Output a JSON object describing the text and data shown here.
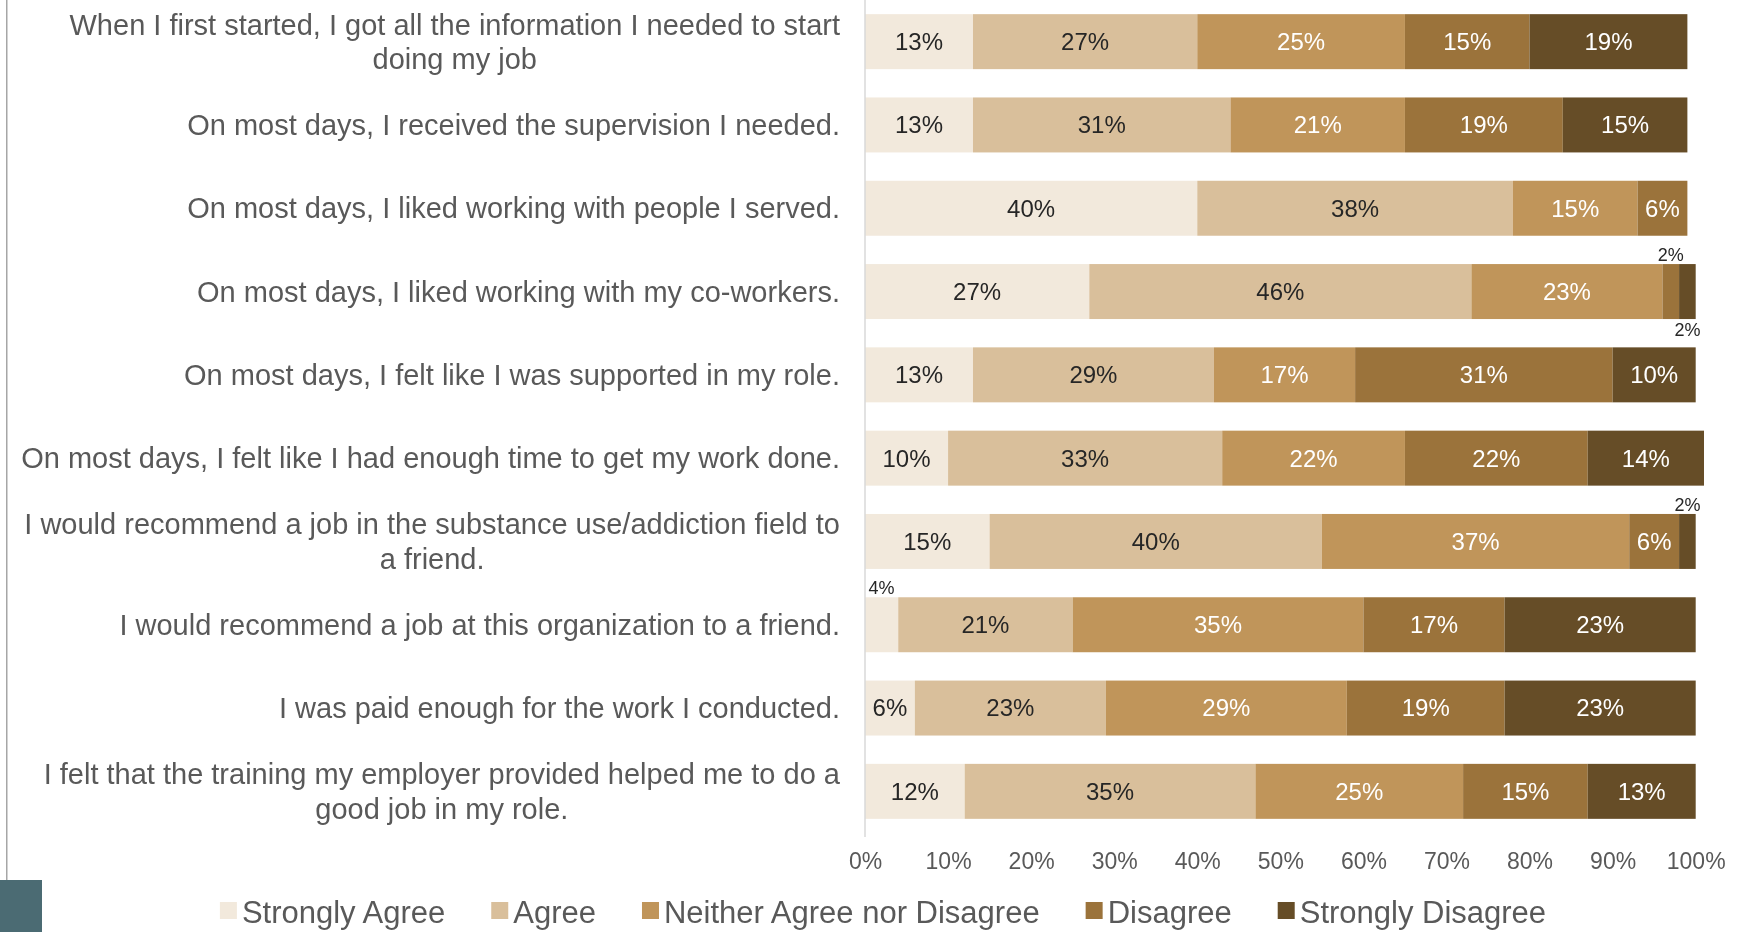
{
  "chart_data": {
    "type": "bar",
    "orientation": "horizontal",
    "stacked": true,
    "categories": [
      "When I first started, I got all the information I needed to start doing my job",
      "On most days, I received the supervision I needed.",
      "On most days, I liked working with people I served.",
      "On most days, I liked working with my co-workers.",
      "On most days, I felt like I was supported in my role.",
      "On most days, I felt like I had enough time to get my work done.",
      "I would recommend a job in the substance use/addiction field to a friend.",
      "I would recommend a job at this organization to a friend.",
      "I was paid enough for the work I conducted.",
      "I felt that the training my employer provided helped me to do a good job in my role."
    ],
    "series": [
      {
        "name": "Strongly Agree",
        "color": "#f2e9dc",
        "values": [
          13,
          13,
          40,
          27,
          13,
          10,
          15,
          4,
          6,
          12
        ],
        "value_labels": [
          "13%",
          "13%",
          "40%",
          "27%",
          "13%",
          "10%",
          "15%",
          "4%",
          "6%",
          "12%"
        ]
      },
      {
        "name": "Agree",
        "color": "#d9bf9b",
        "values": [
          27,
          31,
          38,
          46,
          29,
          33,
          40,
          21,
          23,
          35
        ],
        "value_labels": [
          "27%",
          "31%",
          "38%",
          "46%",
          "29%",
          "33%",
          "40%",
          "21%",
          "23%",
          "35%"
        ]
      },
      {
        "name": "Neither Agree nor Disagree",
        "color": "#c0955a",
        "values": [
          25,
          21,
          15,
          23,
          17,
          22,
          37,
          35,
          29,
          25
        ],
        "value_labels": [
          "25%",
          "21%",
          "15%",
          "23%",
          "17%",
          "22%",
          "37%",
          "35%",
          "29%",
          "25%"
        ]
      },
      {
        "name": "Disagree",
        "color": "#9b733b",
        "values": [
          15,
          19,
          6,
          2,
          31,
          22,
          6,
          17,
          19,
          15
        ],
        "value_labels": [
          "15%",
          "19%",
          "6%",
          "2%",
          "31%",
          "22%",
          "6%",
          "17%",
          "19%",
          "15%"
        ]
      },
      {
        "name": "Strongly Disagree",
        "color": "#664d27",
        "values": [
          19,
          15,
          null,
          2,
          10,
          14,
          2,
          23,
          23,
          13
        ],
        "value_labels": [
          "19%",
          "15%",
          null,
          "2%",
          "10%",
          "14%",
          "2%",
          "23%",
          "23%",
          "13%"
        ]
      }
    ],
    "xlim": [
      0,
      101
    ],
    "xticks": [
      {
        "value": 0,
        "label": "0%"
      },
      {
        "value": 10,
        "label": "10%"
      },
      {
        "value": 20,
        "label": "20%"
      },
      {
        "value": 30,
        "label": "30%"
      },
      {
        "value": 40,
        "label": "40%"
      },
      {
        "value": 50,
        "label": "50%"
      },
      {
        "value": 60,
        "label": "60%"
      },
      {
        "value": 70,
        "label": "70%"
      },
      {
        "value": 80,
        "label": "80%"
      },
      {
        "value": 90,
        "label": "90%"
      },
      {
        "value": 100,
        "label": "100%"
      }
    ],
    "grid": false,
    "legend": "bottom"
  }
}
